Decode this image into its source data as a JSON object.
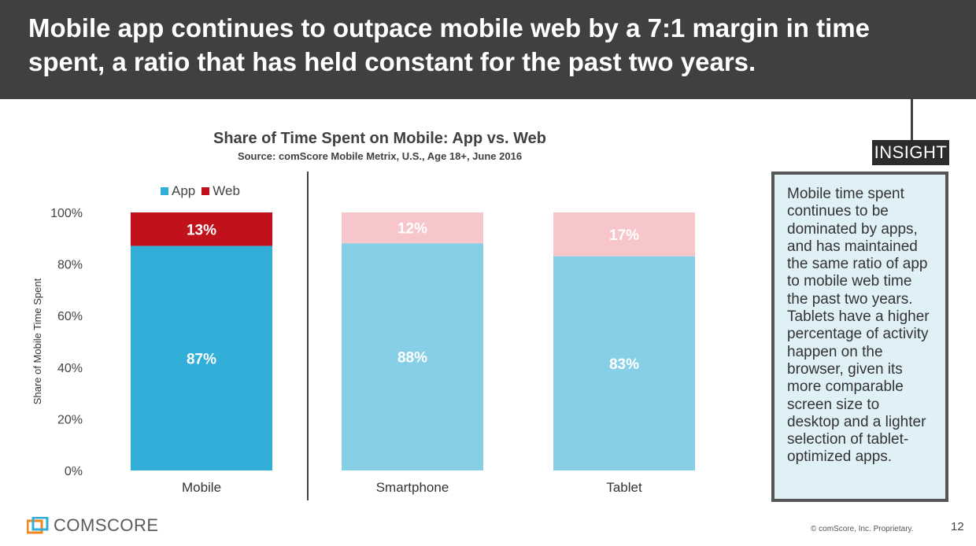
{
  "header": {
    "title_line1": "Mobile app continues to outpace mobile web by a 7:1 margin in time",
    "title_line2": "spent, a ratio that has held constant for the past two years."
  },
  "insight": {
    "tag": "INSIGHT",
    "text": "Mobile time spent continues to be dominated by apps, and has maintained the same ratio of app to mobile web time the past two years. Tablets have a higher percentage of activity happen on the browser, given its more comparable screen size to desktop and a lighter selection of tablet-optimized apps."
  },
  "legend": {
    "app_label": "App",
    "web_label": "Web"
  },
  "chart_data": {
    "type": "bar",
    "stacked": true,
    "title": "Share of Time Spent on Mobile: App vs. Web",
    "subtitle": "Source: comScore Mobile Metrix, U.S., Age 18+, June 2016",
    "ylabel": "Share of Mobile Time Spent",
    "ylim": [
      0,
      100
    ],
    "yticks": [
      "0%",
      "20%",
      "40%",
      "60%",
      "80%",
      "100%"
    ],
    "categories": [
      "Mobile",
      "Smartphone",
      "Tablet"
    ],
    "series": [
      {
        "name": "App",
        "values": [
          87,
          88,
          83
        ],
        "labels": [
          "87%",
          "88%",
          "83%"
        ],
        "colors": [
          "#31afd9",
          "#86cfe6",
          "#86cfe6"
        ]
      },
      {
        "name": "Web",
        "values": [
          13,
          12,
          17
        ],
        "labels": [
          "13%",
          "12%",
          "17%"
        ],
        "colors": [
          "#c1121c",
          "#f6c6cb",
          "#f6c6cb"
        ]
      }
    ],
    "legend_position": "top-left",
    "grid": false
  },
  "footer": {
    "logo": "comScore",
    "logo_display": "COMSCORE",
    "copyright": "© comScore, Inc. Proprietary.",
    "page_number": "12"
  }
}
